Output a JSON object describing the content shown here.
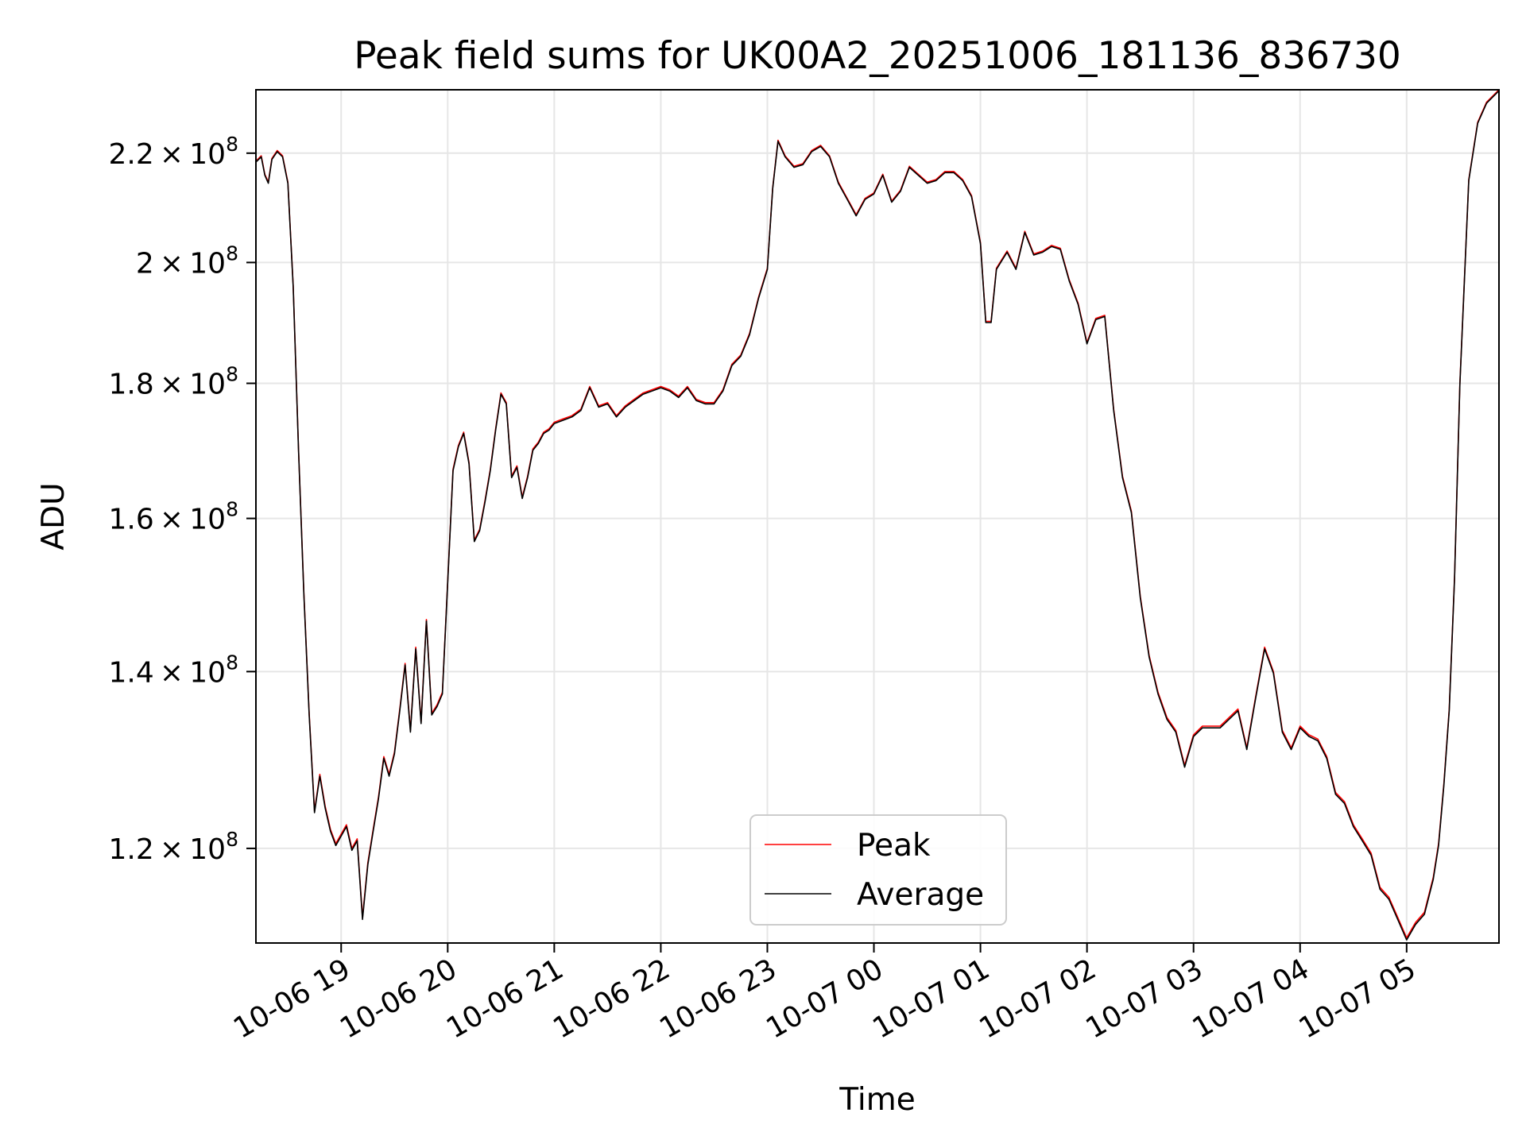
{
  "chart_data": {
    "type": "line",
    "title": "Peak field sums for UK00A2_20251006_181136_836730",
    "xlabel": "Time",
    "ylabel": "ADU",
    "y_scale": "log",
    "grid": true,
    "legend_position": "lower center",
    "x_ticks": [
      "10-06 19",
      "10-06 20",
      "10-06 21",
      "10-06 22",
      "10-06 23",
      "10-07 00",
      "10-07 01",
      "10-07 02",
      "10-07 03",
      "10-07 04",
      "10-07 05"
    ],
    "y_ticks": [
      {
        "mantissa": "1.2",
        "exponent": "8",
        "value": 120000000
      },
      {
        "mantissa": "1.4",
        "exponent": "8",
        "value": 140000000
      },
      {
        "mantissa": "1.6",
        "exponent": "8",
        "value": 160000000
      },
      {
        "mantissa": "1.8",
        "exponent": "8",
        "value": 180000000
      },
      {
        "mantissa": "2",
        "exponent": "8",
        "value": 200000000
      },
      {
        "mantissa": "2.2",
        "exponent": "8",
        "value": 220000000
      }
    ],
    "xlim": [
      "2025-10-06 18:12",
      "2025-10-07 05:52"
    ],
    "ylim": [
      110500000,
      232500000
    ],
    "series": [
      {
        "name": "Peak",
        "color": "#ff0000",
        "x": [
          "2025-10-06 18:12",
          "2025-10-06 18:15",
          "2025-10-06 18:17",
          "2025-10-06 18:19",
          "2025-10-06 18:21",
          "2025-10-06 18:24",
          "2025-10-06 18:27",
          "2025-10-06 18:30",
          "2025-10-06 18:33",
          "2025-10-06 18:36",
          "2025-10-06 18:39",
          "2025-10-06 18:42",
          "2025-10-06 18:45",
          "2025-10-06 18:48",
          "2025-10-06 18:51",
          "2025-10-06 18:54",
          "2025-10-06 18:57",
          "2025-10-06 19:00",
          "2025-10-06 19:03",
          "2025-10-06 19:06",
          "2025-10-06 19:09",
          "2025-10-06 19:12",
          "2025-10-06 19:15",
          "2025-10-06 19:18",
          "2025-10-06 19:21",
          "2025-10-06 19:24",
          "2025-10-06 19:27",
          "2025-10-06 19:30",
          "2025-10-06 19:33",
          "2025-10-06 19:36",
          "2025-10-06 19:39",
          "2025-10-06 19:42",
          "2025-10-06 19:45",
          "2025-10-06 19:48",
          "2025-10-06 19:51",
          "2025-10-06 19:54",
          "2025-10-06 19:57",
          "2025-10-06 20:00",
          "2025-10-06 20:03",
          "2025-10-06 20:06",
          "2025-10-06 20:09",
          "2025-10-06 20:12",
          "2025-10-06 20:15",
          "2025-10-06 20:18",
          "2025-10-06 20:21",
          "2025-10-06 20:24",
          "2025-10-06 20:27",
          "2025-10-06 20:30",
          "2025-10-06 20:33",
          "2025-10-06 20:36",
          "2025-10-06 20:39",
          "2025-10-06 20:42",
          "2025-10-06 20:45",
          "2025-10-06 20:48",
          "2025-10-06 20:51",
          "2025-10-06 20:54",
          "2025-10-06 20:57",
          "2025-10-06 21:00",
          "2025-10-06 21:05",
          "2025-10-06 21:10",
          "2025-10-06 21:15",
          "2025-10-06 21:20",
          "2025-10-06 21:25",
          "2025-10-06 21:30",
          "2025-10-06 21:35",
          "2025-10-06 21:40",
          "2025-10-06 21:45",
          "2025-10-06 21:50",
          "2025-10-06 21:55",
          "2025-10-06 22:00",
          "2025-10-06 22:05",
          "2025-10-06 22:10",
          "2025-10-06 22:15",
          "2025-10-06 22:20",
          "2025-10-06 22:25",
          "2025-10-06 22:30",
          "2025-10-06 22:35",
          "2025-10-06 22:40",
          "2025-10-06 22:45",
          "2025-10-06 22:50",
          "2025-10-06 22:55",
          "2025-10-06 23:00",
          "2025-10-06 23:03",
          "2025-10-06 23:06",
          "2025-10-06 23:10",
          "2025-10-06 23:15",
          "2025-10-06 23:20",
          "2025-10-06 23:25",
          "2025-10-06 23:30",
          "2025-10-06 23:35",
          "2025-10-06 23:40",
          "2025-10-06 23:45",
          "2025-10-06 23:50",
          "2025-10-06 23:55",
          "2025-10-07 00:00",
          "2025-10-07 00:05",
          "2025-10-07 00:10",
          "2025-10-07 00:15",
          "2025-10-07 00:20",
          "2025-10-07 00:25",
          "2025-10-07 00:30",
          "2025-10-07 00:35",
          "2025-10-07 00:40",
          "2025-10-07 00:45",
          "2025-10-07 00:50",
          "2025-10-07 00:55",
          "2025-10-07 01:00",
          "2025-10-07 01:03",
          "2025-10-07 01:06",
          "2025-10-07 01:09",
          "2025-10-07 01:12",
          "2025-10-07 01:15",
          "2025-10-07 01:20",
          "2025-10-07 01:25",
          "2025-10-07 01:30",
          "2025-10-07 01:35",
          "2025-10-07 01:40",
          "2025-10-07 01:45",
          "2025-10-07 01:50",
          "2025-10-07 01:55",
          "2025-10-07 02:00",
          "2025-10-07 02:05",
          "2025-10-07 02:10",
          "2025-10-07 02:15",
          "2025-10-07 02:20",
          "2025-10-07 02:25",
          "2025-10-07 02:30",
          "2025-10-07 02:35",
          "2025-10-07 02:40",
          "2025-10-07 02:45",
          "2025-10-07 02:50",
          "2025-10-07 02:55",
          "2025-10-07 03:00",
          "2025-10-07 03:05",
          "2025-10-07 03:10",
          "2025-10-07 03:15",
          "2025-10-07 03:20",
          "2025-10-07 03:25",
          "2025-10-07 03:30",
          "2025-10-07 03:35",
          "2025-10-07 03:40",
          "2025-10-07 03:45",
          "2025-10-07 03:50",
          "2025-10-07 03:55",
          "2025-10-07 04:00",
          "2025-10-07 04:05",
          "2025-10-07 04:10",
          "2025-10-07 04:15",
          "2025-10-07 04:20",
          "2025-10-07 04:25",
          "2025-10-07 04:30",
          "2025-10-07 04:35",
          "2025-10-07 04:40",
          "2025-10-07 04:45",
          "2025-10-07 04:50",
          "2025-10-07 04:55",
          "2025-10-07 05:00",
          "2025-10-07 05:05",
          "2025-10-07 05:10",
          "2025-10-07 05:15",
          "2025-10-07 05:18",
          "2025-10-07 05:21",
          "2025-10-07 05:24",
          "2025-10-07 05:27",
          "2025-10-07 05:30",
          "2025-10-07 05:35",
          "2025-10-07 05:40",
          "2025-10-07 05:45",
          "2025-10-07 05:52"
        ],
        "values": [
          218500000,
          219500000,
          216000000,
          214500000,
          219000000,
          220500000,
          219500000,
          214500000,
          196000000,
          170000000,
          150000000,
          135000000,
          124000000,
          128000000,
          124500000,
          122000000,
          120500000,
          121500000,
          122500000,
          120000000,
          121000000,
          113000000,
          118500000,
          122000000,
          125500000,
          130000000,
          128000000,
          130500000,
          135500000,
          141000000,
          133000000,
          143000000,
          134000000,
          146500000,
          135000000,
          136000000,
          137500000,
          151500000,
          167000000,
          170500000,
          172500000,
          168000000,
          157000000,
          158500000,
          162500000,
          167000000,
          173000000,
          178500000,
          177000000,
          166000000,
          167500000,
          163000000,
          166000000,
          170000000,
          171000000,
          172500000,
          173000000,
          174000000,
          174500000,
          175000000,
          176000000,
          179500000,
          176500000,
          177000000,
          175000000,
          176500000,
          177500000,
          178500000,
          179000000,
          179500000,
          179000000,
          178000000,
          179500000,
          177500000,
          177000000,
          177000000,
          179000000,
          183000000,
          184500000,
          188000000,
          194000000,
          199000000,
          213500000,
          222500000,
          219500000,
          217500000,
          218000000,
          220500000,
          221500000,
          219500000,
          214500000,
          211500000,
          208500000,
          211500000,
          212500000,
          216000000,
          211000000,
          213000000,
          217500000,
          216000000,
          214500000,
          215000000,
          216500000,
          216500000,
          215000000,
          212000000,
          203500000,
          190000000,
          190000000,
          199000000,
          200500000,
          202000000,
          199000000,
          205500000,
          201500000,
          202000000,
          203000000,
          202500000,
          197000000,
          193000000,
          186500000,
          190500000,
          191000000,
          176000000,
          166000000,
          161000000,
          149500000,
          142000000,
          137500000,
          134500000,
          133000000,
          129000000,
          132500000,
          133500000,
          133500000,
          133500000,
          134500000,
          135500000,
          131000000,
          137000000,
          143000000,
          140000000,
          133000000,
          131000000,
          133500000,
          132500000,
          132000000,
          130000000,
          126000000,
          125000000,
          122500000,
          121000000,
          119500000,
          116000000,
          115000000,
          113000000,
          111000000,
          112500000,
          113500000,
          117000000,
          120500000,
          127000000,
          135500000,
          152000000,
          180000000,
          215000000,
          226000000,
          230000000,
          232500000
        ],
        "stroke_width_note": ""
      },
      {
        "name": "Average",
        "color": "#000000",
        "x": [
          "2025-10-06 18:12",
          "2025-10-06 18:15",
          "2025-10-06 18:17",
          "2025-10-06 18:19",
          "2025-10-06 18:21",
          "2025-10-06 18:24",
          "2025-10-06 18:27",
          "2025-10-06 18:30",
          "2025-10-06 18:33",
          "2025-10-06 18:36",
          "2025-10-06 18:39",
          "2025-10-06 18:42",
          "2025-10-06 18:45",
          "2025-10-06 18:48",
          "2025-10-06 18:51",
          "2025-10-06 18:54",
          "2025-10-06 18:57",
          "2025-10-06 19:00",
          "2025-10-06 19:03",
          "2025-10-06 19:06",
          "2025-10-06 19:09",
          "2025-10-06 19:12",
          "2025-10-06 19:15",
          "2025-10-06 19:18",
          "2025-10-06 19:21",
          "2025-10-06 19:24",
          "2025-10-06 19:27",
          "2025-10-06 19:30",
          "2025-10-06 19:33",
          "2025-10-06 19:36",
          "2025-10-06 19:39",
          "2025-10-06 19:42",
          "2025-10-06 19:45",
          "2025-10-06 19:48",
          "2025-10-06 19:51",
          "2025-10-06 19:54",
          "2025-10-06 19:57",
          "2025-10-06 20:00",
          "2025-10-06 20:03",
          "2025-10-06 20:06",
          "2025-10-06 20:09",
          "2025-10-06 20:12",
          "2025-10-06 20:15",
          "2025-10-06 20:18",
          "2025-10-06 20:21",
          "2025-10-06 20:24",
          "2025-10-06 20:27",
          "2025-10-06 20:30",
          "2025-10-06 20:33",
          "2025-10-06 20:36",
          "2025-10-06 20:39",
          "2025-10-06 20:42",
          "2025-10-06 20:45",
          "2025-10-06 20:48",
          "2025-10-06 20:51",
          "2025-10-06 20:54",
          "2025-10-06 20:57",
          "2025-10-06 21:00",
          "2025-10-06 21:05",
          "2025-10-06 21:10",
          "2025-10-06 21:15",
          "2025-10-06 21:20",
          "2025-10-06 21:25",
          "2025-10-06 21:30",
          "2025-10-06 21:35",
          "2025-10-06 21:40",
          "2025-10-06 21:45",
          "2025-10-06 21:50",
          "2025-10-06 21:55",
          "2025-10-06 22:00",
          "2025-10-06 22:05",
          "2025-10-06 22:10",
          "2025-10-06 22:15",
          "2025-10-06 22:20",
          "2025-10-06 22:25",
          "2025-10-06 22:30",
          "2025-10-06 22:35",
          "2025-10-06 22:40",
          "2025-10-06 22:45",
          "2025-10-06 22:50",
          "2025-10-06 22:55",
          "2025-10-06 23:00",
          "2025-10-06 23:03",
          "2025-10-06 23:06",
          "2025-10-06 23:10",
          "2025-10-06 23:15",
          "2025-10-06 23:20",
          "2025-10-06 23:25",
          "2025-10-06 23:30",
          "2025-10-06 23:35",
          "2025-10-06 23:40",
          "2025-10-06 23:45",
          "2025-10-06 23:50",
          "2025-10-06 23:55",
          "2025-10-07 00:00",
          "2025-10-07 00:05",
          "2025-10-07 00:10",
          "2025-10-07 00:15",
          "2025-10-07 00:20",
          "2025-10-07 00:25",
          "2025-10-07 00:30",
          "2025-10-07 00:35",
          "2025-10-07 00:40",
          "2025-10-07 00:45",
          "2025-10-07 00:50",
          "2025-10-07 00:55",
          "2025-10-07 01:00",
          "2025-10-07 01:03",
          "2025-10-07 01:06",
          "2025-10-07 01:09",
          "2025-10-07 01:12",
          "2025-10-07 01:15",
          "2025-10-07 01:20",
          "2025-10-07 01:25",
          "2025-10-07 01:30",
          "2025-10-07 01:35",
          "2025-10-07 01:40",
          "2025-10-07 01:45",
          "2025-10-07 01:50",
          "2025-10-07 01:55",
          "2025-10-07 02:00",
          "2025-10-07 02:05",
          "2025-10-07 02:10",
          "2025-10-07 02:15",
          "2025-10-07 02:20",
          "2025-10-07 02:25",
          "2025-10-07 02:30",
          "2025-10-07 02:35",
          "2025-10-07 02:40",
          "2025-10-07 02:45",
          "2025-10-07 02:50",
          "2025-10-07 02:55",
          "2025-10-07 03:00",
          "2025-10-07 03:05",
          "2025-10-07 03:10",
          "2025-10-07 03:15",
          "2025-10-07 03:20",
          "2025-10-07 03:25",
          "2025-10-07 03:30",
          "2025-10-07 03:35",
          "2025-10-07 03:40",
          "2025-10-07 03:45",
          "2025-10-07 03:50",
          "2025-10-07 03:55",
          "2025-10-07 04:00",
          "2025-10-07 04:05",
          "2025-10-07 04:10",
          "2025-10-07 04:15",
          "2025-10-07 04:20",
          "2025-10-07 04:25",
          "2025-10-07 04:30",
          "2025-10-07 04:35",
          "2025-10-07 04:40",
          "2025-10-07 04:45",
          "2025-10-07 04:50",
          "2025-10-07 04:55",
          "2025-10-07 05:00",
          "2025-10-07 05:05",
          "2025-10-07 05:10",
          "2025-10-07 05:15",
          "2025-10-07 05:18",
          "2025-10-07 05:21",
          "2025-10-07 05:24",
          "2025-10-07 05:27",
          "2025-10-07 05:30",
          "2025-10-07 05:35",
          "2025-10-07 05:40",
          "2025-10-07 05:45",
          "2025-10-07 05:52"
        ],
        "values": [
          218300000,
          219300000,
          215800000,
          214300000,
          218800000,
          220300000,
          219300000,
          214300000,
          195800000,
          169800000,
          149800000,
          134800000,
          123800000,
          127800000,
          124300000,
          121800000,
          120300000,
          121300000,
          122300000,
          119800000,
          120800000,
          112800000,
          118300000,
          121800000,
          125300000,
          129800000,
          127800000,
          130300000,
          135300000,
          140800000,
          132800000,
          142800000,
          133800000,
          146300000,
          134800000,
          135800000,
          137300000,
          151300000,
          166800000,
          170300000,
          172300000,
          167800000,
          156800000,
          158300000,
          162300000,
          166800000,
          172800000,
          178300000,
          176800000,
          165800000,
          167300000,
          162800000,
          165800000,
          169800000,
          170800000,
          172300000,
          172800000,
          173800000,
          174300000,
          174800000,
          175800000,
          179300000,
          176300000,
          176800000,
          174800000,
          176300000,
          177300000,
          178300000,
          178800000,
          179300000,
          178800000,
          177800000,
          179300000,
          177300000,
          176800000,
          176800000,
          178800000,
          182800000,
          184300000,
          187800000,
          193800000,
          198800000,
          213300000,
          222300000,
          219300000,
          217300000,
          217800000,
          220300000,
          221300000,
          219300000,
          214300000,
          211300000,
          208300000,
          211300000,
          212300000,
          215800000,
          210800000,
          212800000,
          217300000,
          215800000,
          214300000,
          214800000,
          216300000,
          216300000,
          214800000,
          211800000,
          203300000,
          189800000,
          189800000,
          198800000,
          200300000,
          201800000,
          198800000,
          205300000,
          201300000,
          201800000,
          202800000,
          202300000,
          196800000,
          192800000,
          186300000,
          190300000,
          190800000,
          175800000,
          165800000,
          160800000,
          149300000,
          141800000,
          137300000,
          134300000,
          132800000,
          128800000,
          132300000,
          133300000,
          133300000,
          133300000,
          134300000,
          135300000,
          130800000,
          136800000,
          142800000,
          139800000,
          132800000,
          130800000,
          133300000,
          132300000,
          131800000,
          129800000,
          125800000,
          124800000,
          122300000,
          120800000,
          119300000,
          115800000,
          114800000,
          112800000,
          110800000,
          112300000,
          113300000,
          116800000,
          120300000,
          126800000,
          135300000,
          151800000,
          179800000,
          214800000,
          225800000,
          229800000,
          232300000
        ]
      }
    ]
  },
  "legend": {
    "items": [
      {
        "label": "Peak",
        "color": "#ff0000"
      },
      {
        "label": "Average",
        "color": "#000000"
      }
    ]
  }
}
